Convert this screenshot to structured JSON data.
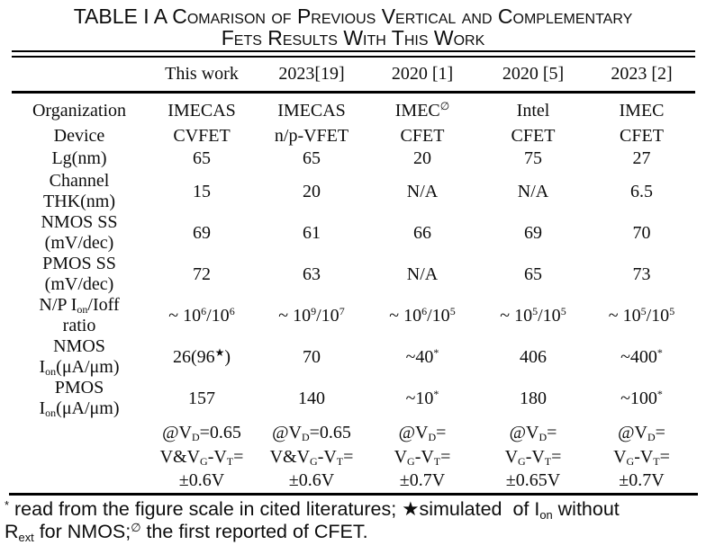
{
  "colors": {
    "ink": "#0d0d0d",
    "background": "#ffffff"
  },
  "title": {
    "line1": "TABLE I A Comarison of Previous Vertical and Complementary",
    "line2": "Fets Results With This Work"
  },
  "table": {
    "columns": [
      {
        "id": "parameter",
        "label": ""
      },
      {
        "id": "this-work",
        "label": "This work"
      },
      {
        "id": "2023-19",
        "label": "2023[19]"
      },
      {
        "id": "2020-1",
        "label": "2020 [1]"
      },
      {
        "id": "2020-5",
        "label": "2020 [5]"
      },
      {
        "id": "2023-2",
        "label": "2023 [2]"
      }
    ],
    "rows": [
      {
        "name": "organization",
        "label": [
          [
            {
              "t": "Organization"
            }
          ]
        ],
        "cells": [
          [
            {
              "t": "IMECAS"
            }
          ],
          [
            {
              "t": "IMECAS"
            }
          ],
          [
            {
              "t": "IMEC"
            },
            {
              "sup": "∅"
            }
          ],
          [
            {
              "t": "Intel"
            }
          ],
          [
            {
              "t": "IMEC"
            }
          ]
        ]
      },
      {
        "name": "device",
        "label": [
          [
            {
              "t": "Device"
            }
          ]
        ],
        "cells": [
          [
            {
              "t": "CVFET"
            }
          ],
          [
            {
              "t": "n/p-VFET"
            }
          ],
          [
            {
              "t": "CFET"
            }
          ],
          [
            {
              "t": "CFET"
            }
          ],
          [
            {
              "t": "CFET"
            }
          ]
        ]
      },
      {
        "name": "gate-length",
        "label": [
          [
            {
              "t": "Lg(nm)"
            }
          ]
        ],
        "cells": [
          [
            {
              "t": "65"
            }
          ],
          [
            {
              "t": "65"
            }
          ],
          [
            {
              "t": "20"
            }
          ],
          [
            {
              "t": "75"
            }
          ],
          [
            {
              "t": "27"
            }
          ]
        ]
      },
      {
        "name": "channel-thickness",
        "label": [
          [
            {
              "t": "Channel"
            }
          ],
          [
            {
              "t": "THK(nm)"
            }
          ]
        ],
        "cells": [
          [
            {
              "t": "15"
            }
          ],
          [
            {
              "t": "20"
            }
          ],
          [
            {
              "t": "N/A"
            }
          ],
          [
            {
              "t": "N/A"
            }
          ],
          [
            {
              "t": "6.5"
            }
          ]
        ]
      },
      {
        "name": "nmos-ss",
        "label": [
          [
            {
              "t": "NMOS SS"
            }
          ],
          [
            {
              "t": "(mV/dec)"
            }
          ]
        ],
        "cells": [
          [
            {
              "t": "69"
            }
          ],
          [
            {
              "t": "61"
            }
          ],
          [
            {
              "t": "66"
            }
          ],
          [
            {
              "t": "69"
            }
          ],
          [
            {
              "t": "70"
            }
          ]
        ]
      },
      {
        "name": "pmos-ss",
        "label": [
          [
            {
              "t": "PMOS SS"
            }
          ],
          [
            {
              "t": "(mV/dec)"
            }
          ]
        ],
        "cells": [
          [
            {
              "t": "72"
            }
          ],
          [
            {
              "t": "63"
            }
          ],
          [
            {
              "t": "N/A"
            }
          ],
          [
            {
              "t": "65"
            }
          ],
          [
            {
              "t": "73"
            }
          ]
        ]
      },
      {
        "name": "ion-ioff-ratio",
        "label": [
          [
            {
              "t": "N/P I"
            },
            {
              "sub": "on"
            },
            {
              "t": "/Ioff"
            }
          ],
          [
            {
              "t": "ratio"
            }
          ]
        ],
        "cells": [
          [
            {
              "t": "~ 10"
            },
            {
              "sup": "6"
            },
            {
              "t": "/10"
            },
            {
              "sup": "6"
            }
          ],
          [
            {
              "t": "~ 10"
            },
            {
              "sup": "9"
            },
            {
              "t": "/10"
            },
            {
              "sup": "7"
            }
          ],
          [
            {
              "t": "~ 10"
            },
            {
              "sup": "6"
            },
            {
              "t": "/10"
            },
            {
              "sup": "5"
            }
          ],
          [
            {
              "t": "~ 10"
            },
            {
              "sup": "5"
            },
            {
              "t": "/10"
            },
            {
              "sup": "5"
            }
          ],
          [
            {
              "t": "~ 10"
            },
            {
              "sup": "5"
            },
            {
              "t": "/10"
            },
            {
              "sup": "5"
            }
          ]
        ]
      },
      {
        "name": "nmos-ion",
        "label": [
          [
            {
              "t": "NMOS"
            }
          ],
          [
            {
              "t": "I"
            },
            {
              "sub": "on"
            },
            {
              "t": "(μA/μm)"
            }
          ]
        ],
        "cells": [
          [
            {
              "t": "26(96"
            },
            {
              "sup": "★"
            },
            {
              "t": ")"
            }
          ],
          [
            {
              "t": "70"
            }
          ],
          [
            {
              "t": "~40"
            },
            {
              "sup": "*"
            }
          ],
          [
            {
              "t": "406"
            }
          ],
          [
            {
              "t": "~400"
            },
            {
              "sup": "*"
            }
          ]
        ]
      },
      {
        "name": "pmos-ion",
        "label": [
          [
            {
              "t": "PMOS"
            }
          ],
          [
            {
              "t": "I"
            },
            {
              "sub": "on"
            },
            {
              "t": "(μA/μm)"
            }
          ]
        ],
        "cells": [
          [
            {
              "t": "157"
            }
          ],
          [
            {
              "t": "140"
            }
          ],
          [
            {
              "t": "~10"
            },
            {
              "sup": "*"
            }
          ],
          [
            {
              "t": "180"
            }
          ],
          [
            {
              "t": "~100"
            },
            {
              "sup": "*"
            }
          ]
        ]
      },
      {
        "name": "bias-condition-1",
        "label": [
          [
            {
              "t": ""
            }
          ]
        ],
        "cells": [
          [
            {
              "t": "@V"
            },
            {
              "sub": "D"
            },
            {
              "t": "=0.65"
            }
          ],
          [
            {
              "t": "@V"
            },
            {
              "sub": "D"
            },
            {
              "t": "=0.65"
            }
          ],
          [
            {
              "t": "@V"
            },
            {
              "sub": "D"
            },
            {
              "t": "="
            }
          ],
          [
            {
              "t": "@V"
            },
            {
              "sub": "D"
            },
            {
              "t": "="
            }
          ],
          [
            {
              "t": "@V"
            },
            {
              "sub": "D"
            },
            {
              "t": "="
            }
          ]
        ]
      },
      {
        "name": "bias-condition-2",
        "label": [
          [
            {
              "t": ""
            }
          ]
        ],
        "cells": [
          [
            {
              "t": "V&V"
            },
            {
              "sub": "G"
            },
            {
              "t": "-V"
            },
            {
              "sub": "T"
            },
            {
              "t": "="
            }
          ],
          [
            {
              "t": "V&V"
            },
            {
              "sub": "G"
            },
            {
              "t": "-V"
            },
            {
              "sub": "T"
            },
            {
              "t": "="
            }
          ],
          [
            {
              "t": "V"
            },
            {
              "sub": "G"
            },
            {
              "t": "-V"
            },
            {
              "sub": "T"
            },
            {
              "t": "="
            }
          ],
          [
            {
              "t": "V"
            },
            {
              "sub": "G"
            },
            {
              "t": "-V"
            },
            {
              "sub": "T"
            },
            {
              "t": "="
            }
          ],
          [
            {
              "t": "V"
            },
            {
              "sub": "G"
            },
            {
              "t": "-V"
            },
            {
              "sub": "T"
            },
            {
              "t": "="
            }
          ]
        ]
      },
      {
        "name": "bias-condition-3",
        "label": [
          [
            {
              "t": ""
            }
          ]
        ],
        "cells": [
          [
            {
              "t": "±0.6V"
            }
          ],
          [
            {
              "t": "±0.6V"
            }
          ],
          [
            {
              "t": "±0.7V"
            }
          ],
          [
            {
              "t": "±0.65V"
            }
          ],
          [
            {
              "t": "±0.7V"
            }
          ]
        ]
      }
    ]
  },
  "footnote": {
    "runs": [
      {
        "sup": "*"
      },
      {
        "t": " read from the figure scale in cited literatures; ★simulated  of I"
      },
      {
        "sub": "on"
      },
      {
        "t": " without"
      },
      {
        "br": true
      },
      {
        "t": "R"
      },
      {
        "sub": "ext"
      },
      {
        "t": " for NMOS;"
      },
      {
        "sup": "∅"
      },
      {
        "t": " the first reported of CFET."
      }
    ]
  }
}
